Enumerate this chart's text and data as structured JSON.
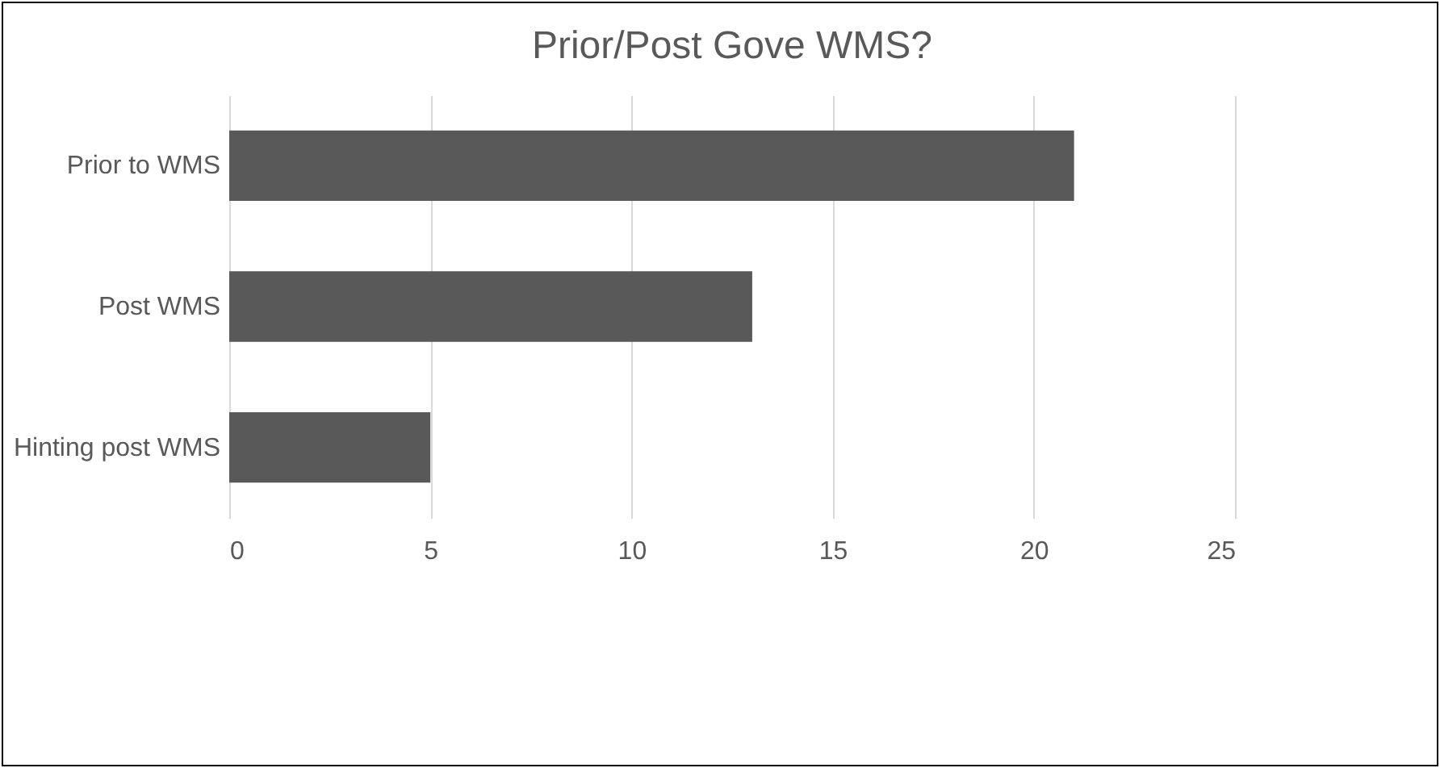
{
  "chart_data": {
    "type": "bar",
    "orientation": "horizontal",
    "title": "Prior/Post Gove WMS?",
    "categories": [
      "Prior to WMS",
      "Post WMS",
      "Hinting post WMS"
    ],
    "values": [
      21,
      13,
      5
    ],
    "color": "#595959",
    "xlim": [
      0,
      25
    ],
    "xticks": [
      0,
      5,
      10,
      15,
      20,
      25
    ],
    "grid": "x"
  }
}
